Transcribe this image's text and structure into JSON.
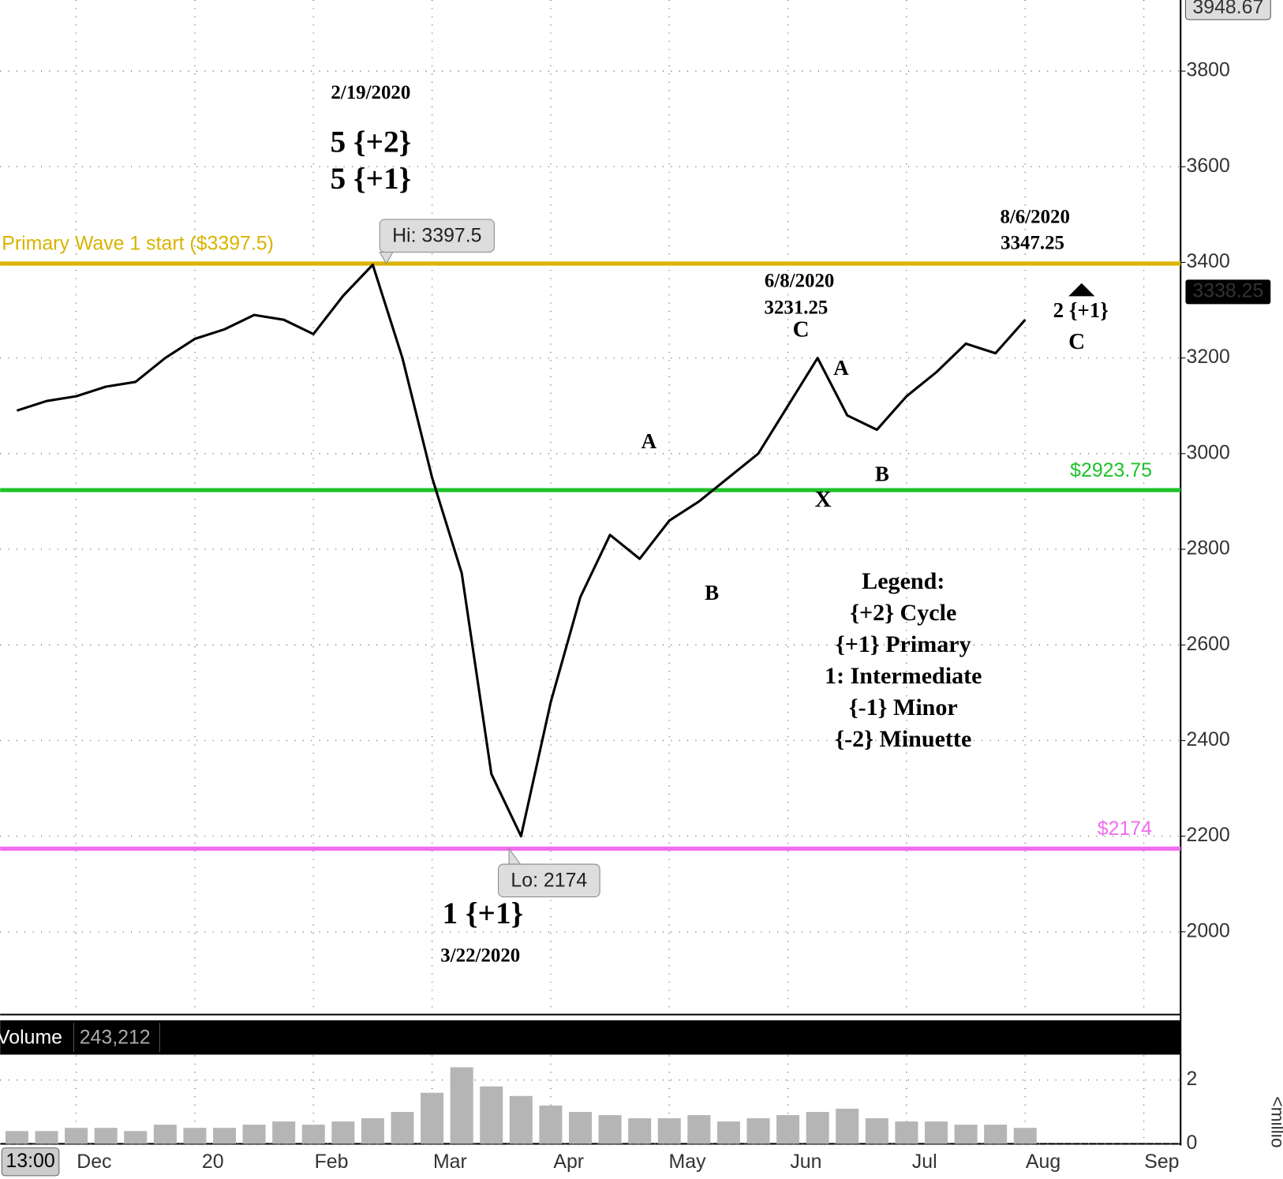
{
  "chart_data": {
    "type": "line",
    "categories": [
      null,
      null,
      "Dec",
      null,
      null,
      null,
      "20",
      null,
      null,
      null,
      "Feb",
      null,
      null,
      null,
      "Mar",
      null,
      null,
      null,
      "Apr",
      null,
      null,
      null,
      "May",
      null,
      null,
      null,
      "Jun",
      null,
      null,
      null,
      "Jul",
      null,
      null,
      null,
      "Aug",
      null,
      null,
      null,
      "Sep"
    ],
    "series": [
      {
        "color": "#000000",
        "values": [
          3090,
          3110,
          3120,
          3140,
          3150,
          3200,
          3240,
          3260,
          3290,
          3280,
          3250,
          3330,
          3395,
          3200,
          2950,
          2750,
          2330,
          2200,
          2480,
          2700,
          2830,
          2780,
          2860,
          2900,
          2950,
          3000,
          3100,
          3200,
          3080,
          3050,
          3120,
          3170,
          3230,
          3210,
          3280,
          null,
          null,
          null,
          null
        ]
      }
    ],
    "ylim": [
      1827,
      3948.67
    ],
    "yticks": [
      2000,
      2200,
      2400,
      2600,
      2800,
      3000,
      3200,
      3400,
      3600,
      3800
    ],
    "grid": true,
    "last_price": 3338.25,
    "time_label": "13:00",
    "levels": [
      {
        "value": 3397.5,
        "label": "Primary Wave 1 start ($3397.5)",
        "color": "#d9b300"
      },
      {
        "value": 2923.75,
        "label": "$2923.75",
        "color": "#1ec22a"
      },
      {
        "value": 2174,
        "label": "$2174",
        "color": "#f06cf0"
      }
    ],
    "hi": {
      "value": 3397.5,
      "label": "Hi: 3397.5"
    },
    "lo": {
      "value": 2174,
      "label": "Lo: 2174"
    },
    "annotations": [
      "2/19/2020",
      "5 {+2}",
      "5 {+1}",
      "8/6/2020",
      "3347.25",
      "6/8/2020",
      "3231.25",
      "C",
      "2 {+1}",
      "C",
      "A",
      "A",
      "B",
      "X",
      "B",
      "1 {+1}",
      "3/22/2020"
    ],
    "legend_text": [
      "Legend:",
      "{+2} Cycle",
      "{+1} Primary",
      "1: Intermediate",
      "{-1} Minor",
      "{-2} Minuette"
    ],
    "volume": {
      "label": "Volume",
      "last": "243,212",
      "unit_label": "<millio",
      "color": "#b5b5b5",
      "values": [
        0.4,
        0.4,
        0.5,
        0.5,
        0.4,
        0.6,
        0.5,
        0.5,
        0.6,
        0.7,
        0.6,
        0.7,
        0.8,
        1.0,
        1.6,
        2.4,
        1.8,
        1.5,
        1.2,
        1.0,
        0.9,
        0.8,
        0.8,
        0.9,
        0.7,
        0.8,
        0.9,
        1.0,
        1.1,
        0.8,
        0.7,
        0.7,
        0.6,
        0.6,
        0.5,
        null,
        null,
        null,
        null
      ],
      "ylim": [
        0,
        2.77
      ],
      "yticks": [
        0,
        2
      ]
    }
  }
}
